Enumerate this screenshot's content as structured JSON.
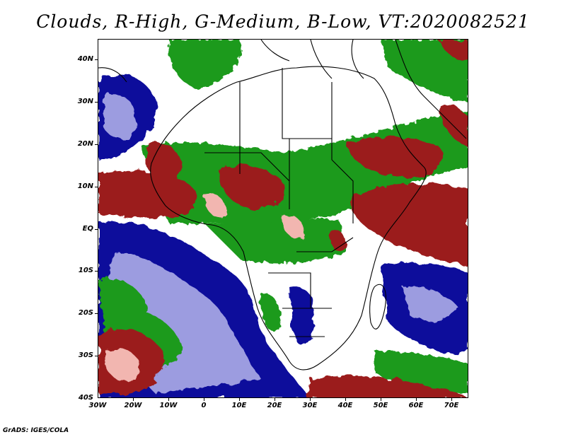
{
  "title": "Clouds, R-High, G-Medium, B-Low, VT:2020082521",
  "map": {
    "projection": "lat-lon",
    "lon_range": [
      -30,
      75
    ],
    "lat_range": [
      -40,
      45
    ],
    "lat_ticks": [
      "40N",
      "30N",
      "20N",
      "10N",
      "EQ",
      "10S",
      "20S",
      "30S",
      "40S"
    ],
    "lon_ticks": [
      "30W",
      "20W",
      "10W",
      "0",
      "10E",
      "20E",
      "30E",
      "40E",
      "50E",
      "60E",
      "70E"
    ],
    "legend_colors": {
      "high": "#9b1c1c",
      "high_light": "#f2b6b0",
      "medium": "#1e9a1e",
      "low": "#0a0a9b",
      "low_light": "#9c9ce0",
      "clear": "#ffffff"
    }
  },
  "footer": "GrADS: IGES/COLA"
}
